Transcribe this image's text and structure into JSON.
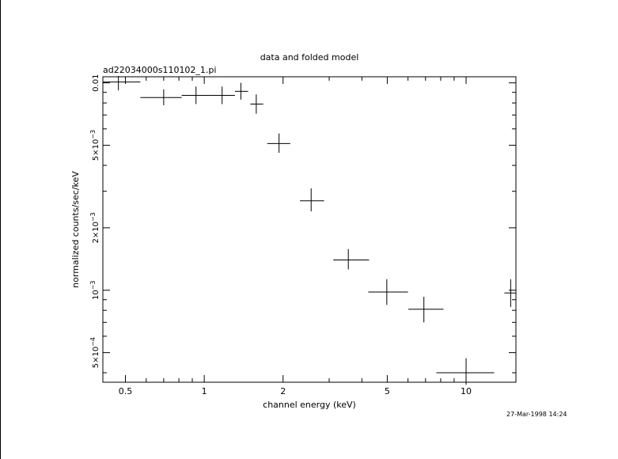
{
  "chart_data": {
    "type": "scatter",
    "title": "data and folded model",
    "subtitle": "ad22034000s110102_1.pi",
    "xlabel": "channel energy (keV)",
    "ylabel": "normalized counts/sec/keV",
    "xscale": "log",
    "yscale": "log",
    "xlim": [
      0.41,
      15.5
    ],
    "ylim": [
      0.00036,
      0.0107
    ],
    "grid": false,
    "x_tick_labels": [
      {
        "value": 0.5,
        "label": "0.5"
      },
      {
        "value": 1,
        "label": "1"
      },
      {
        "value": 2,
        "label": "2"
      },
      {
        "value": 5,
        "label": "5"
      },
      {
        "value": 10,
        "label": "10"
      }
    ],
    "y_tick_labels": [
      {
        "value": 0.01,
        "base": "0.01",
        "exp": ""
      },
      {
        "value": 0.005,
        "base": "5×10",
        "exp": "−3"
      },
      {
        "value": 0.002,
        "base": "2×10",
        "exp": "−3"
      },
      {
        "value": 0.001,
        "base": "10",
        "exp": "−3"
      },
      {
        "value": 0.0005,
        "base": "5×10",
        "exp": "−4"
      }
    ],
    "series": [
      {
        "points": [
          {
            "x": 0.47,
            "y": 0.0101,
            "xlo": 0.41,
            "xhi": 0.57,
            "ylo": 0.0092,
            "yhi": 0.0108
          },
          {
            "x": 0.7,
            "y": 0.0085,
            "xlo": 0.57,
            "xhi": 0.82,
            "ylo": 0.0078,
            "yhi": 0.0093
          },
          {
            "x": 0.93,
            "y": 0.0087,
            "xlo": 0.82,
            "xhi": 1.05,
            "ylo": 0.0079,
            "yhi": 0.0096
          },
          {
            "x": 1.17,
            "y": 0.0087,
            "xlo": 1.05,
            "xhi": 1.31,
            "ylo": 0.0079,
            "yhi": 0.0096
          },
          {
            "x": 1.38,
            "y": 0.0091,
            "xlo": 1.31,
            "xhi": 1.47,
            "ylo": 0.0083,
            "yhi": 0.01
          },
          {
            "x": 1.58,
            "y": 0.0079,
            "xlo": 1.5,
            "xhi": 1.68,
            "ylo": 0.0071,
            "yhi": 0.0088
          },
          {
            "x": 1.93,
            "y": 0.0051,
            "xlo": 1.74,
            "xhi": 2.13,
            "ylo": 0.0046,
            "yhi": 0.0057
          },
          {
            "x": 2.56,
            "y": 0.0027,
            "xlo": 2.32,
            "xhi": 2.87,
            "ylo": 0.0024,
            "yhi": 0.0031
          },
          {
            "x": 3.55,
            "y": 0.0014,
            "xlo": 3.11,
            "xhi": 4.26,
            "ylo": 0.00126,
            "yhi": 0.00158
          },
          {
            "x": 4.98,
            "y": 0.00098,
            "xlo": 4.23,
            "xhi": 6.0,
            "ylo": 0.00085,
            "yhi": 0.00113
          },
          {
            "x": 6.9,
            "y": 0.00081,
            "xlo": 6.02,
            "xhi": 8.2,
            "ylo": 0.0007,
            "yhi": 0.00093
          },
          {
            "x": 10.0,
            "y": 0.0004,
            "xlo": 7.7,
            "xhi": 12.8,
            "ylo": 0.00035,
            "yhi": 0.00047
          },
          {
            "x": 14.8,
            "y": 0.00097,
            "xlo": 14.0,
            "xhi": 15.5,
            "ylo": 0.00083,
            "yhi": 0.00113
          }
        ]
      }
    ]
  },
  "footer": {
    "timestamp": "27-Mar-1998 14:24"
  }
}
